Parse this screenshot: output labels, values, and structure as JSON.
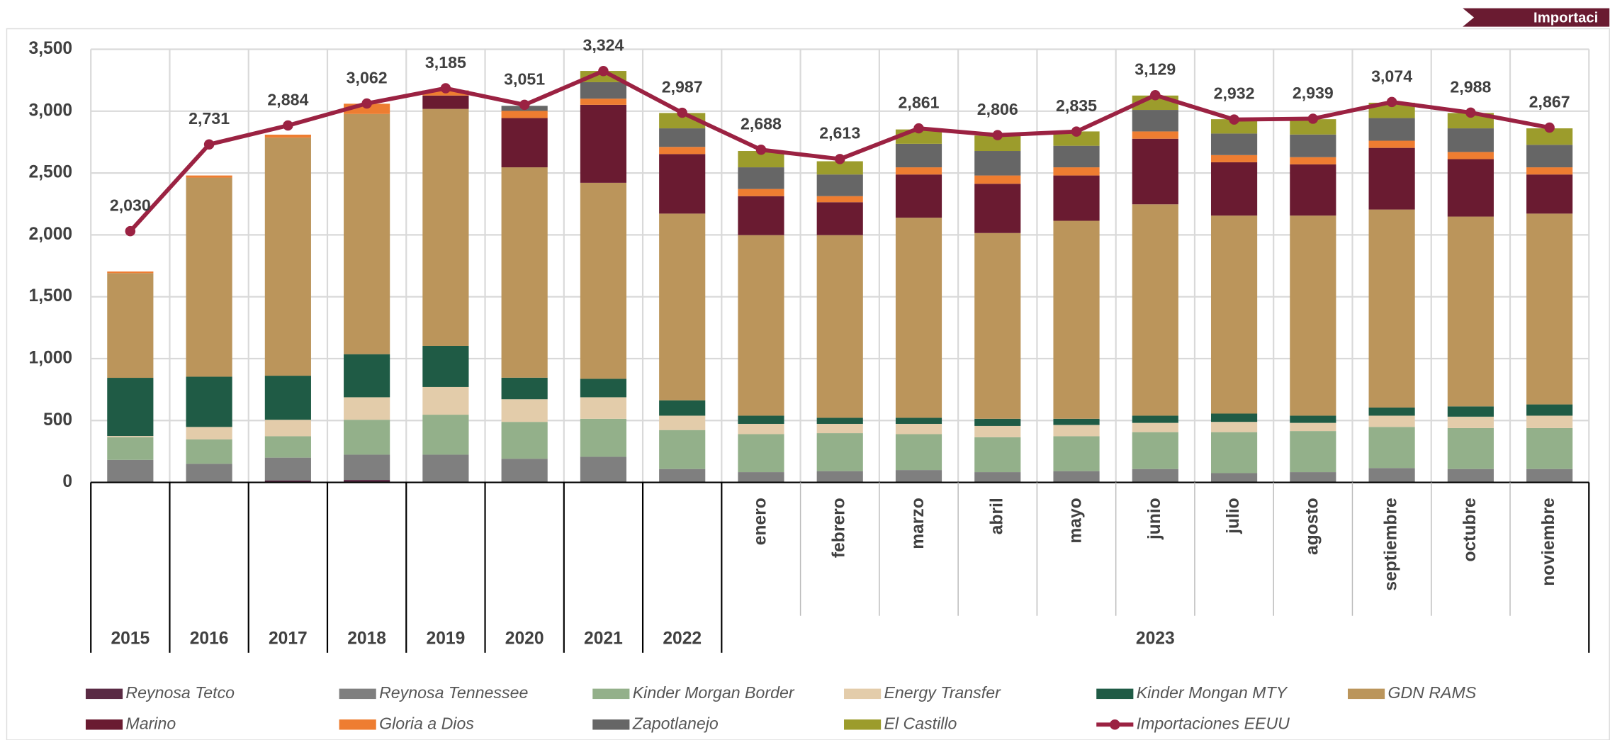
{
  "banner": "Importaci",
  "chart_data": {
    "type": "stacked_bar",
    "categories": [
      "2015",
      "2016",
      "2017",
      "2018",
      "2019",
      "2020",
      "2021",
      "2022",
      "enero",
      "febrero",
      "marzo",
      "abril",
      "mayo",
      "junio",
      "julio",
      "agosto",
      "septiembre",
      "octubre",
      "noviembre"
    ],
    "groups": [
      {
        "label": "2023",
        "count": 11
      }
    ],
    "ylim": [
      0,
      3500
    ],
    "yticks": [
      0,
      500,
      {
        "value": 1000,
        "label": "1,000"
      },
      {
        "value": 1500,
        "label": "1,500"
      },
      {
        "value": 2000,
        "label": "2,000"
      },
      {
        "value": 2500,
        "label": "2,500"
      },
      {
        "value": 3000,
        "label": "3,000"
      },
      {
        "value": 3500,
        "label": "3,500"
      }
    ],
    "grid": true,
    "series": [
      {
        "name": "Reynosa Tetco",
        "color": "#5a2a44",
        "values": [
          0,
          0,
          15,
          20,
          0,
          0,
          0,
          0,
          0,
          0,
          0,
          0,
          0,
          0,
          0,
          0,
          0,
          0,
          0
        ]
      },
      {
        "name": "Reynosa Tennessee",
        "color": "#7f7f7f",
        "values": [
          182,
          150,
          185,
          204,
          224,
          191,
          207,
          108,
          83,
          91,
          100,
          83,
          91,
          108,
          75,
          83,
          116,
          108,
          108
        ]
      },
      {
        "name": "Kinder Morgan Border",
        "color": "#93b08a",
        "values": [
          183,
          198,
          173,
          282,
          323,
          298,
          307,
          315,
          307,
          307,
          290,
          282,
          282,
          298,
          331,
          332,
          332,
          331,
          331
        ]
      },
      {
        "name": "Energy Transfer",
        "color": "#e3ccaa",
        "values": [
          10,
          100,
          133,
          182,
          224,
          183,
          174,
          116,
          83,
          75,
          83,
          91,
          91,
          75,
          83,
          66,
          91,
          92,
          100
        ]
      },
      {
        "name": "Kinder Mongan MTY",
        "color": "#1f5b45",
        "values": [
          470,
          406,
          356,
          348,
          332,
          174,
          149,
          124,
          66,
          49,
          49,
          58,
          50,
          58,
          67,
          58,
          66,
          83,
          91
        ]
      },
      {
        "name": "GDN RAMS",
        "color": "#bb955b",
        "values": [
          846,
          1609,
          1924,
          1941,
          1915,
          1700,
          1584,
          1509,
          1459,
          1476,
          1617,
          1501,
          1600,
          1708,
          1600,
          1617,
          1600,
          1534,
          1542
        ]
      },
      {
        "name": "Marino",
        "color": "#6a1b31",
        "values": [
          0,
          0,
          0,
          0,
          108,
          398,
          630,
          481,
          315,
          266,
          349,
          398,
          366,
          530,
          431,
          414,
          498,
          464,
          316
        ]
      },
      {
        "name": "Gloria a Dios",
        "color": "#ee7d31",
        "values": [
          13,
          17,
          24,
          83,
          42,
          58,
          50,
          58,
          58,
          49,
          58,
          67,
          66,
          59,
          58,
          58,
          58,
          58,
          58
        ]
      },
      {
        "name": "Zapotlanejo",
        "color": "#666666",
        "values": [
          0,
          0,
          0,
          0,
          0,
          41,
          133,
          150,
          175,
          175,
          190,
          198,
          174,
          174,
          174,
          183,
          183,
          191,
          182
        ]
      },
      {
        "name": "El Castillo",
        "color": "#9c9c2c",
        "values": [
          0,
          0,
          0,
          0,
          0,
          0,
          91,
          124,
          132,
          107,
          116,
          125,
          116,
          116,
          116,
          124,
          124,
          124,
          133
        ]
      }
    ],
    "line_series": {
      "name": "Importaciones EEUU",
      "color": "#9b2242",
      "values": [
        2030,
        2731,
        2884,
        3062,
        3185,
        3051,
        3324,
        2987,
        2688,
        2613,
        2861,
        2806,
        2835,
        3129,
        2932,
        2939,
        3074,
        2988,
        2867
      ],
      "value_labels": [
        "2,030",
        "2,731",
        "2,884",
        "3,062",
        "3,185",
        "3,051",
        "3,324",
        "2,987",
        "2,688",
        "2,613",
        "2,861",
        "2,806",
        "2,835",
        "3,129",
        "2,932",
        "2,939",
        "3,074",
        "2,988",
        "2,867"
      ]
    }
  }
}
